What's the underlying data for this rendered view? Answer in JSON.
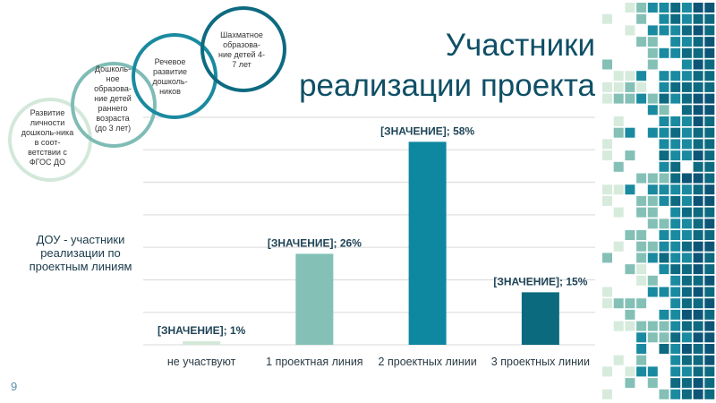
{
  "slide": {
    "title_line1": "Участники",
    "title_line2": "реализации проекта",
    "side_label": "ДОУ - участники реализации по проектным линиям",
    "page_number": "9"
  },
  "circles": [
    {
      "text": "Развитие личности дошколь-ника в соот-ветствии с ФГОС ДО",
      "color": "#d3e8da"
    },
    {
      "text": "Дошколь-ное образова-ние детей раннего возраста (до 3 лет)",
      "color": "#7fbcb5"
    },
    {
      "text": "Речевое развитие дошколь-ников",
      "color": "#1a8aa0"
    },
    {
      "text": "Шахматное образова-ние детей 4-7 лет",
      "color": "#0e6a80"
    }
  ],
  "chart_data": {
    "type": "bar",
    "categories": [
      "не участвуют",
      "1 проектная линия",
      "2 проектных линии",
      "3 проектных линии"
    ],
    "values": [
      1,
      26,
      58,
      15
    ],
    "data_labels": [
      "[ЗНАЧЕНИЕ]; 1%",
      "[ЗНАЧЕНИЕ]; 26%",
      "[ЗНАЧЕНИЕ]; 58%",
      "[ЗНАЧЕНИЕ]; 15%"
    ],
    "colors": [
      "#d3e8d6",
      "#84c0b6",
      "#0e87a0",
      "#0b6a7e"
    ],
    "unit": "%",
    "ylim": [
      0,
      65
    ],
    "grid": true,
    "legend": "none"
  }
}
